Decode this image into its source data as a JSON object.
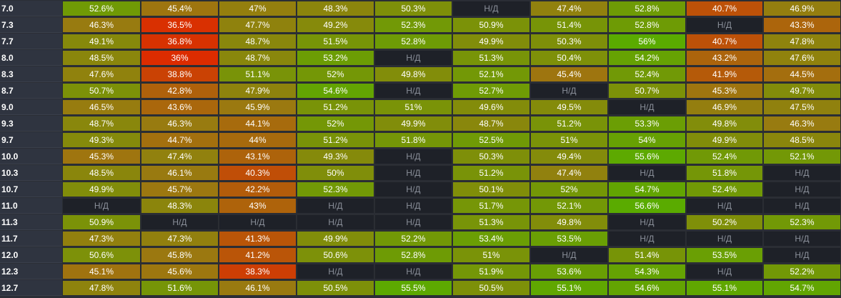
{
  "na_label": "Н/Д",
  "colors": {
    "na_background": "#1e2128",
    "row_header_background": "#2f3440",
    "scale_low": "#dc2c00",
    "scale_mid": "#9a7a10",
    "scale_high": "#5aab00"
  },
  "rows": [
    {
      "label": "7.0",
      "cells": [
        "52.6%",
        "45.4%",
        "47%",
        "48.3%",
        "50.3%",
        "Н/Д",
        "47.4%",
        "52.8%",
        "40.7%",
        "46.9%"
      ]
    },
    {
      "label": "7.3",
      "cells": [
        "46.3%",
        "36.5%",
        "47.7%",
        "49.2%",
        "52.3%",
        "50.9%",
        "51.4%",
        "52.8%",
        "Н/Д",
        "43.3%"
      ]
    },
    {
      "label": "7.7",
      "cells": [
        "49.1%",
        "36.8%",
        "48.7%",
        "51.5%",
        "52.8%",
        "49.9%",
        "50.3%",
        "56%",
        "40.7%",
        "47.8%"
      ]
    },
    {
      "label": "8.0",
      "cells": [
        "48.5%",
        "36%",
        "48.7%",
        "53.2%",
        "Н/Д",
        "51.3%",
        "50.4%",
        "54.2%",
        "43.2%",
        "47.6%"
      ]
    },
    {
      "label": "8.3",
      "cells": [
        "47.6%",
        "38.8%",
        "51.1%",
        "52%",
        "49.8%",
        "52.1%",
        "45.4%",
        "52.4%",
        "41.9%",
        "44.5%"
      ]
    },
    {
      "label": "8.7",
      "cells": [
        "50.7%",
        "42.8%",
        "47.9%",
        "54.6%",
        "Н/Д",
        "52.7%",
        "Н/Д",
        "50.7%",
        "45.3%",
        "49.7%"
      ]
    },
    {
      "label": "9.0",
      "cells": [
        "46.5%",
        "43.6%",
        "45.9%",
        "51.2%",
        "51%",
        "49.6%",
        "49.5%",
        "Н/Д",
        "46.9%",
        "47.5%"
      ]
    },
    {
      "label": "9.3",
      "cells": [
        "48.7%",
        "46.3%",
        "44.1%",
        "52%",
        "49.9%",
        "48.7%",
        "51.2%",
        "53.3%",
        "49.8%",
        "46.3%"
      ]
    },
    {
      "label": "9.7",
      "cells": [
        "49.3%",
        "44.7%",
        "44%",
        "51.2%",
        "51.8%",
        "52.5%",
        "51%",
        "54%",
        "49.9%",
        "48.5%"
      ]
    },
    {
      "label": "10.0",
      "cells": [
        "45.3%",
        "47.4%",
        "43.1%",
        "49.3%",
        "Н/Д",
        "50.3%",
        "49.4%",
        "55.6%",
        "52.4%",
        "52.1%"
      ]
    },
    {
      "label": "10.3",
      "cells": [
        "48.5%",
        "46.1%",
        "40.3%",
        "50%",
        "Н/Д",
        "51.2%",
        "47.4%",
        "Н/Д",
        "51.8%",
        "Н/Д"
      ]
    },
    {
      "label": "10.7",
      "cells": [
        "49.9%",
        "45.7%",
        "42.2%",
        "52.3%",
        "Н/Д",
        "50.1%",
        "52%",
        "54.7%",
        "52.4%",
        "Н/Д"
      ]
    },
    {
      "label": "11.0",
      "cells": [
        "Н/Д",
        "48.3%",
        "43%",
        "Н/Д",
        "Н/Д",
        "51.7%",
        "52.1%",
        "56.6%",
        "Н/Д",
        "Н/Д"
      ]
    },
    {
      "label": "11.3",
      "cells": [
        "50.9%",
        "Н/Д",
        "Н/Д",
        "Н/Д",
        "Н/Д",
        "51.3%",
        "49.8%",
        "Н/Д",
        "50.2%",
        "52.3%"
      ]
    },
    {
      "label": "11.7",
      "cells": [
        "47.3%",
        "47.3%",
        "41.3%",
        "49.9%",
        "52.2%",
        "53.4%",
        "53.5%",
        "Н/Д",
        "Н/Д",
        "Н/Д"
      ]
    },
    {
      "label": "12.0",
      "cells": [
        "50.6%",
        "45.8%",
        "41.2%",
        "50.6%",
        "52.8%",
        "51%",
        "Н/Д",
        "51.4%",
        "53.5%",
        "Н/Д"
      ]
    },
    {
      "label": "12.3",
      "cells": [
        "45.1%",
        "45.6%",
        "38.3%",
        "Н/Д",
        "Н/Д",
        "51.9%",
        "53.6%",
        "54.3%",
        "Н/Д",
        "52.2%"
      ]
    },
    {
      "label": "12.7",
      "cells": [
        "47.8%",
        "51.6%",
        "46.1%",
        "50.5%",
        "55.5%",
        "50.5%",
        "55.1%",
        "54.6%",
        "55.1%",
        "54.7%"
      ]
    }
  ]
}
